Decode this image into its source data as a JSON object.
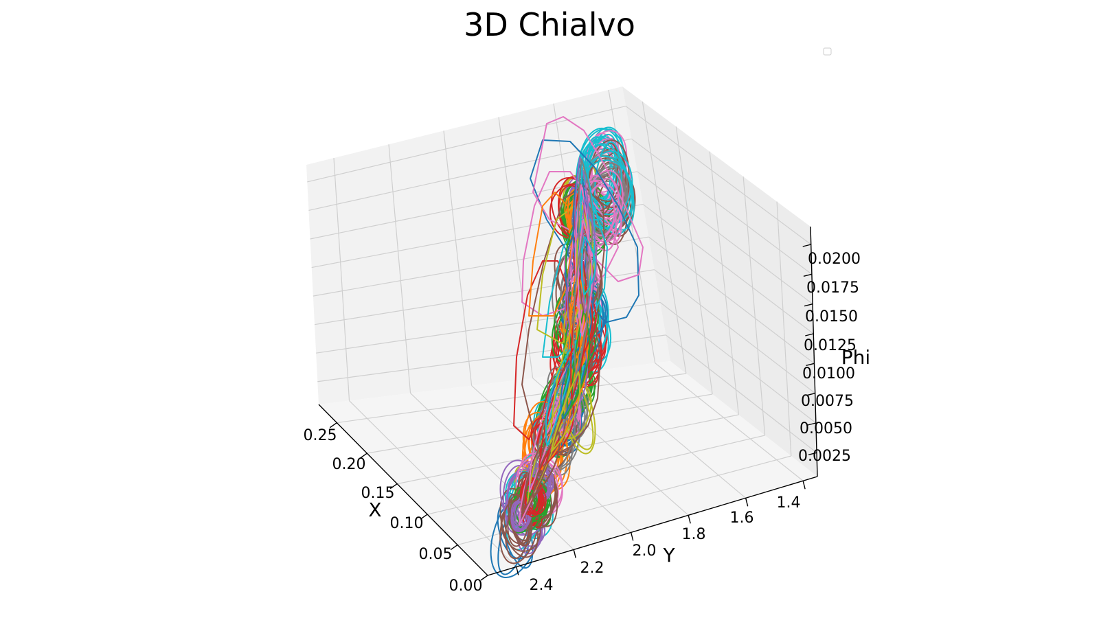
{
  "chart_data": {
    "type": "line3d",
    "title": "3D Chialvo",
    "xlabel": "X",
    "ylabel": "Y",
    "zlabel": "Phi",
    "x_ticks": [
      "0.00",
      "0.05",
      "0.10",
      "0.15",
      "0.20",
      "0.25"
    ],
    "y_ticks": [
      "2.4",
      "2.2",
      "2.0",
      "1.8",
      "1.6",
      "1.4"
    ],
    "z_ticks": [
      "0.0025",
      "0.0050",
      "0.0075",
      "0.0100",
      "0.0125",
      "0.0150",
      "0.0175",
      "0.0200"
    ],
    "xlim": [
      0.0,
      0.28
    ],
    "ylim": [
      2.5,
      1.35
    ],
    "zlim": [
      0.0005,
      0.0215
    ],
    "grid": true,
    "legend": {
      "placement": "upper-right",
      "entries": []
    },
    "series_colors": [
      "#1f77b4",
      "#ff7f0e",
      "#2ca02c",
      "#d62728",
      "#9467bd",
      "#8c564b",
      "#e377c2",
      "#7f7f7f",
      "#bcbd22",
      "#17becf"
    ]
  }
}
